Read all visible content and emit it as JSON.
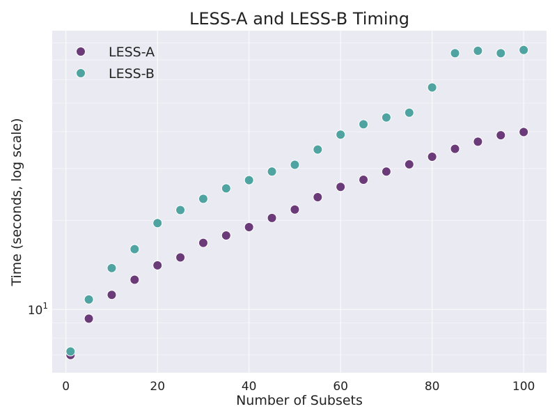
{
  "chart_data": {
    "type": "scatter",
    "title": "LESS-A and LESS-B Timing",
    "xlabel": "Number of Subsets",
    "ylabel": "Time (seconds, log scale)",
    "y_scale": "log",
    "xlim": [
      -3,
      105
    ],
    "ylim": [
      6.1,
      88
    ],
    "x_ticks": [
      0,
      20,
      40,
      60,
      80,
      100
    ],
    "x_tick_labels": [
      "0",
      "20",
      "40",
      "60",
      "80",
      "100"
    ],
    "y_major_ticks": [
      10
    ],
    "y_minor_ticks": [
      7,
      8,
      9,
      20,
      30,
      40,
      50,
      60,
      70,
      80
    ],
    "y_tick_label": {
      "base": "10",
      "exponent": "1"
    },
    "legend_position": "top-left",
    "x": [
      1,
      5,
      10,
      15,
      20,
      25,
      30,
      35,
      40,
      45,
      50,
      55,
      60,
      65,
      70,
      75,
      80,
      85,
      90,
      95,
      100
    ],
    "series": [
      {
        "name": "LESS-A",
        "color": "#6b3a78",
        "values": [
          7.0,
          9.3,
          11.2,
          12.6,
          14.1,
          15.0,
          16.8,
          17.8,
          19.0,
          20.4,
          21.8,
          24.0,
          26.0,
          27.5,
          29.3,
          31.0,
          32.9,
          35.0,
          37.0,
          38.9,
          39.9
        ]
      },
      {
        "name": "LESS-B",
        "color": "#4fa3a0",
        "values": [
          7.2,
          10.8,
          13.8,
          16.0,
          19.6,
          21.7,
          23.7,
          25.7,
          27.4,
          29.3,
          30.9,
          34.8,
          39.1,
          42.4,
          44.7,
          46.4,
          56.5,
          73.8,
          75.2,
          73.8,
          75.7
        ]
      }
    ]
  }
}
